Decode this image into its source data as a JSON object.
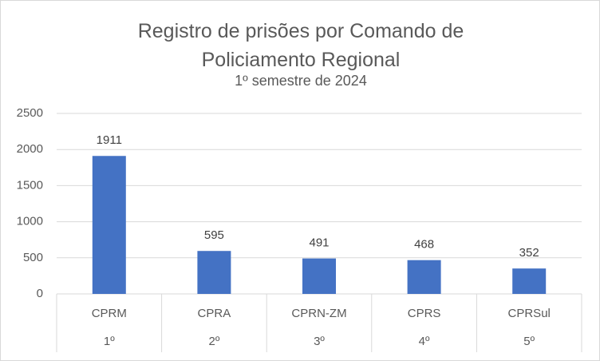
{
  "chart_data": {
    "type": "bar",
    "title": "Registro de prisões por Comando de Policiamento Regional",
    "subtitle": "1º semestre de 2024",
    "categories": [
      "CPRM",
      "CPRA",
      "CPRN-ZM",
      "CPRS",
      "CPRSul"
    ],
    "category_ranks": [
      "1º",
      "2º",
      "3º",
      "4º",
      "5º"
    ],
    "values": [
      1911,
      595,
      491,
      468,
      352
    ],
    "color": "#4472c4",
    "ylim": [
      0,
      2500
    ],
    "yticks": [
      0,
      500,
      1000,
      1500,
      2000,
      2500
    ],
    "grid": true
  }
}
